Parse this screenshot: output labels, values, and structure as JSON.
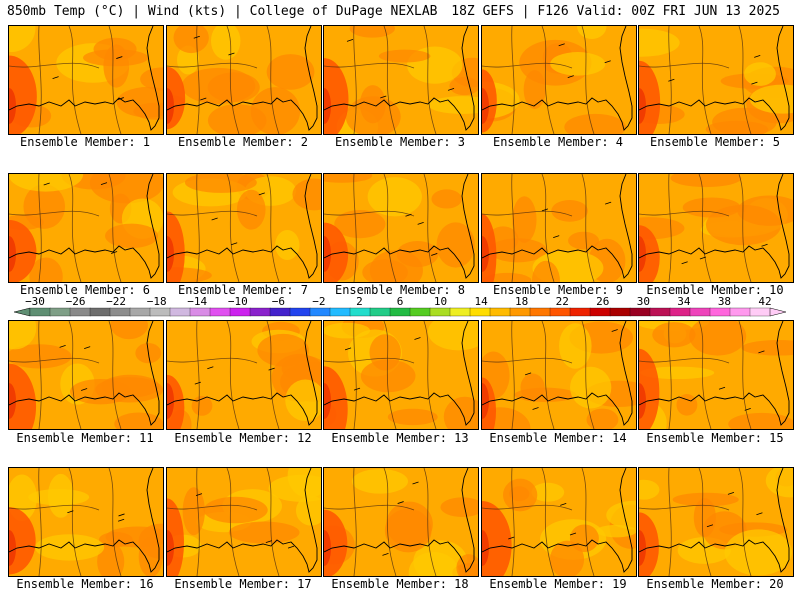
{
  "header": {
    "left": "850mb Temp (°C) | Wind (kts) | College of DuPage NEXLAB",
    "right": "18Z GEFS | F126 Valid: 00Z FRI JUN 13 2025"
  },
  "colors": {
    "base": "#ffaa00",
    "warm": "#ff8800",
    "hot": "#ff5500",
    "hotter": "#ee3300",
    "cool": "#ffc800",
    "line": "#4a2a10"
  },
  "panels": [
    {
      "label": "Ensemble Member: 1"
    },
    {
      "label": "Ensemble Member: 2"
    },
    {
      "label": "Ensemble Member: 3"
    },
    {
      "label": "Ensemble Member: 4"
    },
    {
      "label": "Ensemble Member: 5"
    },
    {
      "label": "Ensemble Member: 6"
    },
    {
      "label": "Ensemble Member: 7"
    },
    {
      "label": "Ensemble Member: 8"
    },
    {
      "label": "Ensemble Member: 9"
    },
    {
      "label": "Ensemble Member: 10"
    },
    {
      "label": "Ensemble Member: 11"
    },
    {
      "label": "Ensemble Member: 12"
    },
    {
      "label": "Ensemble Member: 13"
    },
    {
      "label": "Ensemble Member: 14"
    },
    {
      "label": "Ensemble Member: 15"
    },
    {
      "label": "Ensemble Member: 16"
    },
    {
      "label": "Ensemble Member: 17"
    },
    {
      "label": "Ensemble Member: 18"
    },
    {
      "label": "Ensemble Member: 19"
    },
    {
      "label": "Ensemble Member: 20"
    }
  ],
  "colorbar": {
    "labels": [
      "−30",
      "−26",
      "−22",
      "−18",
      "−14",
      "−10",
      "−6",
      "−2",
      "2",
      "6",
      "10",
      "14",
      "18",
      "22",
      "26",
      "30",
      "34",
      "38",
      "42"
    ],
    "colors": [
      "#5f8f73",
      "#7f9f87",
      "#8a8a8a",
      "#6e6e6e",
      "#8d8d8d",
      "#a8a8a8",
      "#bcbcbc",
      "#d0b8e0",
      "#d98ce6",
      "#e050f0",
      "#cc22ee",
      "#8a22cc",
      "#4422cc",
      "#2244ee",
      "#2288ff",
      "#22bbff",
      "#22ddcc",
      "#22cc88",
      "#22bb44",
      "#55cc22",
      "#aadd22",
      "#eeee22",
      "#ffdd00",
      "#ffbb00",
      "#ff9900",
      "#ff7700",
      "#ff5500",
      "#ee2200",
      "#cc0000",
      "#aa0000",
      "#990022",
      "#bb1155",
      "#dd2288",
      "#ee44bb",
      "#ff66dd",
      "#ff99ee",
      "#ffccf6"
    ]
  }
}
